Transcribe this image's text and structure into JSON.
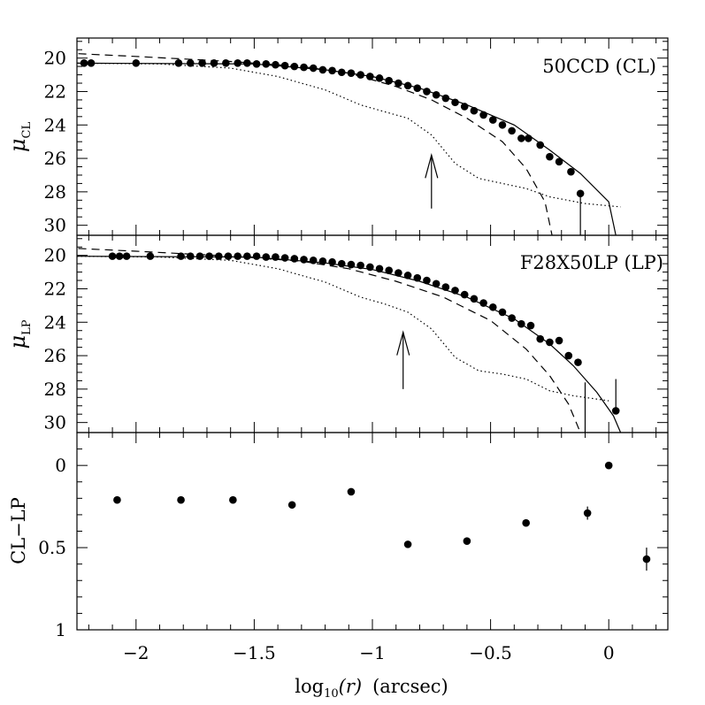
{
  "chart_data": [
    {
      "type": "scatter",
      "panel": "top",
      "label": "50CCD (CL)",
      "ylabel_symbol": "μ",
      "ylabel_sub": "CL",
      "xlim": [
        -2.25,
        0.25
      ],
      "ylim": [
        30.6,
        18.8
      ],
      "yticks_labeled": [
        "20",
        "22",
        "24",
        "26",
        "28",
        "30"
      ],
      "ytick_values": [
        20,
        22,
        24,
        26,
        28,
        30
      ],
      "arrow": {
        "x": -0.75,
        "y_tail": 29.0,
        "y_head": 25.8
      },
      "points": [
        {
          "x": -2.22,
          "y": 20.3
        },
        {
          "x": -2.19,
          "y": 20.3
        },
        {
          "x": -2.0,
          "y": 20.3
        },
        {
          "x": -1.82,
          "y": 20.3
        },
        {
          "x": -1.77,
          "y": 20.3
        },
        {
          "x": -1.72,
          "y": 20.3
        },
        {
          "x": -1.67,
          "y": 20.3
        },
        {
          "x": -1.62,
          "y": 20.3
        },
        {
          "x": -1.57,
          "y": 20.3
        },
        {
          "x": -1.53,
          "y": 20.3
        },
        {
          "x": -1.49,
          "y": 20.35
        },
        {
          "x": -1.45,
          "y": 20.35
        },
        {
          "x": -1.41,
          "y": 20.4
        },
        {
          "x": -1.37,
          "y": 20.45
        },
        {
          "x": -1.33,
          "y": 20.5
        },
        {
          "x": -1.29,
          "y": 20.55
        },
        {
          "x": -1.25,
          "y": 20.6
        },
        {
          "x": -1.21,
          "y": 20.7
        },
        {
          "x": -1.17,
          "y": 20.75
        },
        {
          "x": -1.13,
          "y": 20.85
        },
        {
          "x": -1.09,
          "y": 20.9
        },
        {
          "x": -1.05,
          "y": 21.0
        },
        {
          "x": -1.01,
          "y": 21.1
        },
        {
          "x": -0.97,
          "y": 21.2
        },
        {
          "x": -0.93,
          "y": 21.35
        },
        {
          "x": -0.89,
          "y": 21.5
        },
        {
          "x": -0.85,
          "y": 21.65
        },
        {
          "x": -0.81,
          "y": 21.8
        },
        {
          "x": -0.77,
          "y": 22.0
        },
        {
          "x": -0.73,
          "y": 22.2
        },
        {
          "x": -0.69,
          "y": 22.4
        },
        {
          "x": -0.65,
          "y": 22.65
        },
        {
          "x": -0.61,
          "y": 22.9
        },
        {
          "x": -0.57,
          "y": 23.15
        },
        {
          "x": -0.53,
          "y": 23.4
        },
        {
          "x": -0.49,
          "y": 23.7
        },
        {
          "x": -0.45,
          "y": 24.0
        },
        {
          "x": -0.41,
          "y": 24.35
        },
        {
          "x": -0.37,
          "y": 24.8
        },
        {
          "x": -0.34,
          "y": 24.8
        },
        {
          "x": -0.29,
          "y": 25.2
        },
        {
          "x": -0.25,
          "y": 25.9
        },
        {
          "x": -0.21,
          "y": 26.2
        },
        {
          "x": -0.16,
          "y": 26.8
        },
        {
          "x": -0.12,
          "y": 28.1,
          "err_low": 30.6
        }
      ],
      "curves": {
        "solid": [
          [
            -2.3,
            20.3
          ],
          [
            -1.5,
            20.35
          ],
          [
            -1.2,
            20.7
          ],
          [
            -1.0,
            21.1
          ],
          [
            -0.8,
            21.8
          ],
          [
            -0.6,
            22.8
          ],
          [
            -0.4,
            24.0
          ],
          [
            -0.25,
            25.5
          ],
          [
            -0.12,
            26.9
          ],
          [
            0.0,
            28.6
          ],
          [
            0.03,
            30.6
          ]
        ],
        "dashed": [
          [
            -2.3,
            19.7
          ],
          [
            -2.0,
            19.9
          ],
          [
            -1.6,
            20.2
          ],
          [
            -1.3,
            20.5
          ],
          [
            -1.1,
            20.9
          ],
          [
            -0.9,
            21.7
          ],
          [
            -0.75,
            22.5
          ],
          [
            -0.6,
            23.6
          ],
          [
            -0.45,
            25.0
          ],
          [
            -0.35,
            26.6
          ],
          [
            -0.27,
            28.6
          ],
          [
            -0.24,
            30.6
          ]
        ],
        "dotted": [
          [
            -2.3,
            20.3
          ],
          [
            -1.9,
            20.35
          ],
          [
            -1.6,
            20.6
          ],
          [
            -1.4,
            21.1
          ],
          [
            -1.2,
            21.9
          ],
          [
            -1.05,
            22.8
          ],
          [
            -0.95,
            23.2
          ],
          [
            -0.85,
            23.6
          ],
          [
            -0.75,
            24.6
          ],
          [
            -0.65,
            26.3
          ],
          [
            -0.55,
            27.2
          ],
          [
            -0.45,
            27.5
          ],
          [
            -0.35,
            27.8
          ],
          [
            -0.25,
            28.3
          ],
          [
            -0.1,
            28.7
          ],
          [
            0.05,
            28.9
          ]
        ]
      }
    },
    {
      "type": "scatter",
      "panel": "middle",
      "label": "F28X50LP (LP)",
      "ylabel_symbol": "μ",
      "ylabel_sub": "LP",
      "xlim": [
        -2.25,
        0.25
      ],
      "ylim": [
        30.6,
        18.8
      ],
      "yticks_labeled": [
        "20",
        "22",
        "24",
        "26",
        "28",
        "30"
      ],
      "ytick_values": [
        20,
        22,
        24,
        26,
        28,
        30
      ],
      "arrow": {
        "x": -0.87,
        "y_tail": 28.0,
        "y_head": 24.6
      },
      "points": [
        {
          "x": -2.1,
          "y": 20.05
        },
        {
          "x": -2.07,
          "y": 20.05
        },
        {
          "x": -2.04,
          "y": 20.05
        },
        {
          "x": -1.94,
          "y": 20.05
        },
        {
          "x": -1.81,
          "y": 20.05
        },
        {
          "x": -1.77,
          "y": 20.05
        },
        {
          "x": -1.73,
          "y": 20.05
        },
        {
          "x": -1.69,
          "y": 20.05
        },
        {
          "x": -1.65,
          "y": 20.05
        },
        {
          "x": -1.61,
          "y": 20.05
        },
        {
          "x": -1.57,
          "y": 20.05
        },
        {
          "x": -1.53,
          "y": 20.05
        },
        {
          "x": -1.49,
          "y": 20.05
        },
        {
          "x": -1.45,
          "y": 20.1
        },
        {
          "x": -1.41,
          "y": 20.1
        },
        {
          "x": -1.37,
          "y": 20.15
        },
        {
          "x": -1.33,
          "y": 20.2
        },
        {
          "x": -1.29,
          "y": 20.25
        },
        {
          "x": -1.25,
          "y": 20.3
        },
        {
          "x": -1.21,
          "y": 20.35
        },
        {
          "x": -1.17,
          "y": 20.4
        },
        {
          "x": -1.13,
          "y": 20.5
        },
        {
          "x": -1.09,
          "y": 20.55
        },
        {
          "x": -1.05,
          "y": 20.6
        },
        {
          "x": -1.01,
          "y": 20.7
        },
        {
          "x": -0.97,
          "y": 20.8
        },
        {
          "x": -0.93,
          "y": 20.9
        },
        {
          "x": -0.89,
          "y": 21.05
        },
        {
          "x": -0.85,
          "y": 21.2
        },
        {
          "x": -0.81,
          "y": 21.35
        },
        {
          "x": -0.77,
          "y": 21.5
        },
        {
          "x": -0.73,
          "y": 21.7
        },
        {
          "x": -0.69,
          "y": 21.9
        },
        {
          "x": -0.65,
          "y": 22.1
        },
        {
          "x": -0.61,
          "y": 22.35
        },
        {
          "x": -0.57,
          "y": 22.6
        },
        {
          "x": -0.53,
          "y": 22.85
        },
        {
          "x": -0.49,
          "y": 23.1
        },
        {
          "x": -0.45,
          "y": 23.4
        },
        {
          "x": -0.41,
          "y": 23.75
        },
        {
          "x": -0.37,
          "y": 24.1
        },
        {
          "x": -0.33,
          "y": 24.2
        },
        {
          "x": -0.29,
          "y": 25.0
        },
        {
          "x": -0.25,
          "y": 25.2
        },
        {
          "x": -0.21,
          "y": 25.1
        },
        {
          "x": -0.17,
          "y": 26.0
        },
        {
          "x": -0.13,
          "y": 26.4
        },
        {
          "x": 0.03,
          "y": 29.3,
          "err_high": 27.4
        }
      ],
      "err_lines_only": [
        {
          "x": -0.1,
          "y_from": 27.6,
          "y_to": 30.6
        }
      ],
      "curves": {
        "solid": [
          [
            -2.3,
            20.05
          ],
          [
            -1.5,
            20.1
          ],
          [
            -1.2,
            20.45
          ],
          [
            -1.0,
            20.85
          ],
          [
            -0.8,
            21.55
          ],
          [
            -0.6,
            22.5
          ],
          [
            -0.4,
            23.8
          ],
          [
            -0.25,
            25.3
          ],
          [
            -0.15,
            26.6
          ],
          [
            -0.05,
            28.2
          ],
          [
            0.02,
            29.6
          ],
          [
            0.05,
            30.6
          ]
        ],
        "dashed": [
          [
            -2.3,
            19.55
          ],
          [
            -2.0,
            19.75
          ],
          [
            -1.6,
            20.05
          ],
          [
            -1.3,
            20.35
          ],
          [
            -1.1,
            20.8
          ],
          [
            -0.9,
            21.55
          ],
          [
            -0.7,
            22.5
          ],
          [
            -0.5,
            23.9
          ],
          [
            -0.35,
            25.6
          ],
          [
            -0.25,
            27.2
          ],
          [
            -0.17,
            28.9
          ],
          [
            -0.12,
            30.6
          ]
        ],
        "dotted": [
          [
            -2.3,
            20.05
          ],
          [
            -1.9,
            20.1
          ],
          [
            -1.6,
            20.3
          ],
          [
            -1.4,
            20.8
          ],
          [
            -1.2,
            21.6
          ],
          [
            -1.05,
            22.5
          ],
          [
            -0.95,
            22.9
          ],
          [
            -0.85,
            23.4
          ],
          [
            -0.75,
            24.4
          ],
          [
            -0.65,
            26.1
          ],
          [
            -0.55,
            26.9
          ],
          [
            -0.45,
            27.1
          ],
          [
            -0.35,
            27.4
          ],
          [
            -0.25,
            28.1
          ],
          [
            -0.15,
            28.4
          ],
          [
            0.0,
            28.7
          ]
        ]
      }
    },
    {
      "type": "scatter",
      "panel": "bottom",
      "ylabel": "CL−LP",
      "xlabel_prefix": "log",
      "xlabel_sub": "10",
      "xlabel_var": "(r)",
      "xlabel_unit": "(arcsec)",
      "xlim": [
        -2.25,
        0.25
      ],
      "ylim": [
        1.0,
        -0.2
      ],
      "yticks_labeled": [
        "0",
        "0.5",
        "1"
      ],
      "ytick_values": [
        0,
        0.5,
        1
      ],
      "xticks_labeled": [
        "−2",
        "−1.5",
        "−1",
        "−0.5",
        "0"
      ],
      "xtick_values": [
        -2,
        -1.5,
        -1,
        -0.5,
        0
      ],
      "points": [
        {
          "x": -2.08,
          "y": 0.21
        },
        {
          "x": -1.81,
          "y": 0.21
        },
        {
          "x": -1.59,
          "y": 0.21
        },
        {
          "x": -1.34,
          "y": 0.24
        },
        {
          "x": -1.09,
          "y": 0.16
        },
        {
          "x": -0.85,
          "y": 0.48
        },
        {
          "x": -0.6,
          "y": 0.46
        },
        {
          "x": -0.35,
          "y": 0.35
        },
        {
          "x": -0.09,
          "y": 0.29,
          "err": 0.04
        },
        {
          "x": 0.0,
          "y": 0.0
        },
        {
          "x": 0.16,
          "y": 0.57,
          "err": 0.07
        }
      ]
    }
  ]
}
